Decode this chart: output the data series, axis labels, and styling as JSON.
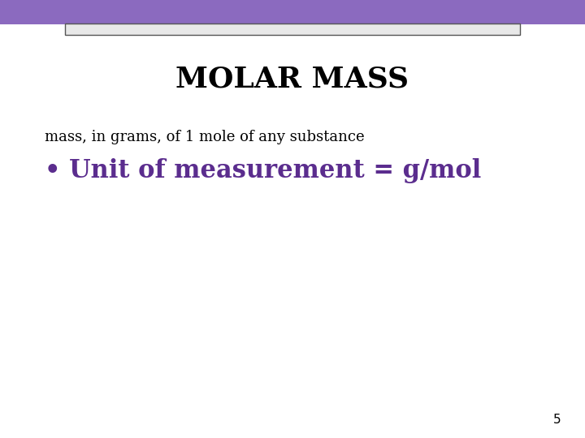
{
  "title": "MOLAR MASS",
  "subtitle": "mass, in grams, of 1 mole of any substance",
  "bullet": "• Unit of measurement = g/mol",
  "page_number": "5",
  "bg_color": "#ffffff",
  "title_color": "#000000",
  "subtitle_color": "#000000",
  "bullet_color": "#5b2d8e",
  "header_bar1_color": "#8b6abf",
  "header_bar2_color": "#d8d8d8",
  "header_bar_border_color": "#555555",
  "title_fontsize": 26,
  "subtitle_fontsize": 13,
  "bullet_fontsize": 22,
  "page_num_fontsize": 11
}
